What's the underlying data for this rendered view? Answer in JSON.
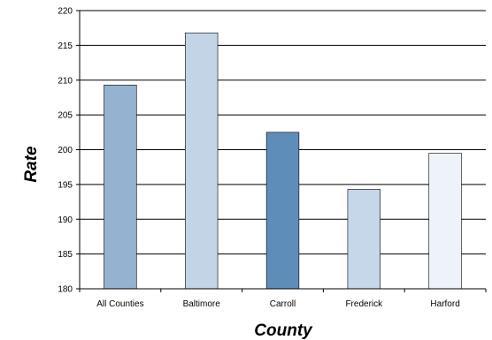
{
  "chart_data": {
    "type": "bar",
    "title": "",
    "xlabel": "County",
    "ylabel": "Rate",
    "categories": [
      "All Counties",
      "Baltimore",
      "Carroll",
      "Frederick",
      "Harford"
    ],
    "series": [
      {
        "values": [
          209.3,
          216.8,
          202.5,
          194.3,
          199.5
        ]
      }
    ],
    "bar_colors": [
      "#95B3D0",
      "#C3D4E7",
      "#5E8DBA",
      "#C7D7EA",
      "#EEF3F9"
    ],
    "ylim": [
      180,
      220
    ],
    "yticks": [
      180,
      185,
      190,
      195,
      200,
      205,
      210,
      215,
      220
    ],
    "grid": true,
    "legend": "none"
  }
}
